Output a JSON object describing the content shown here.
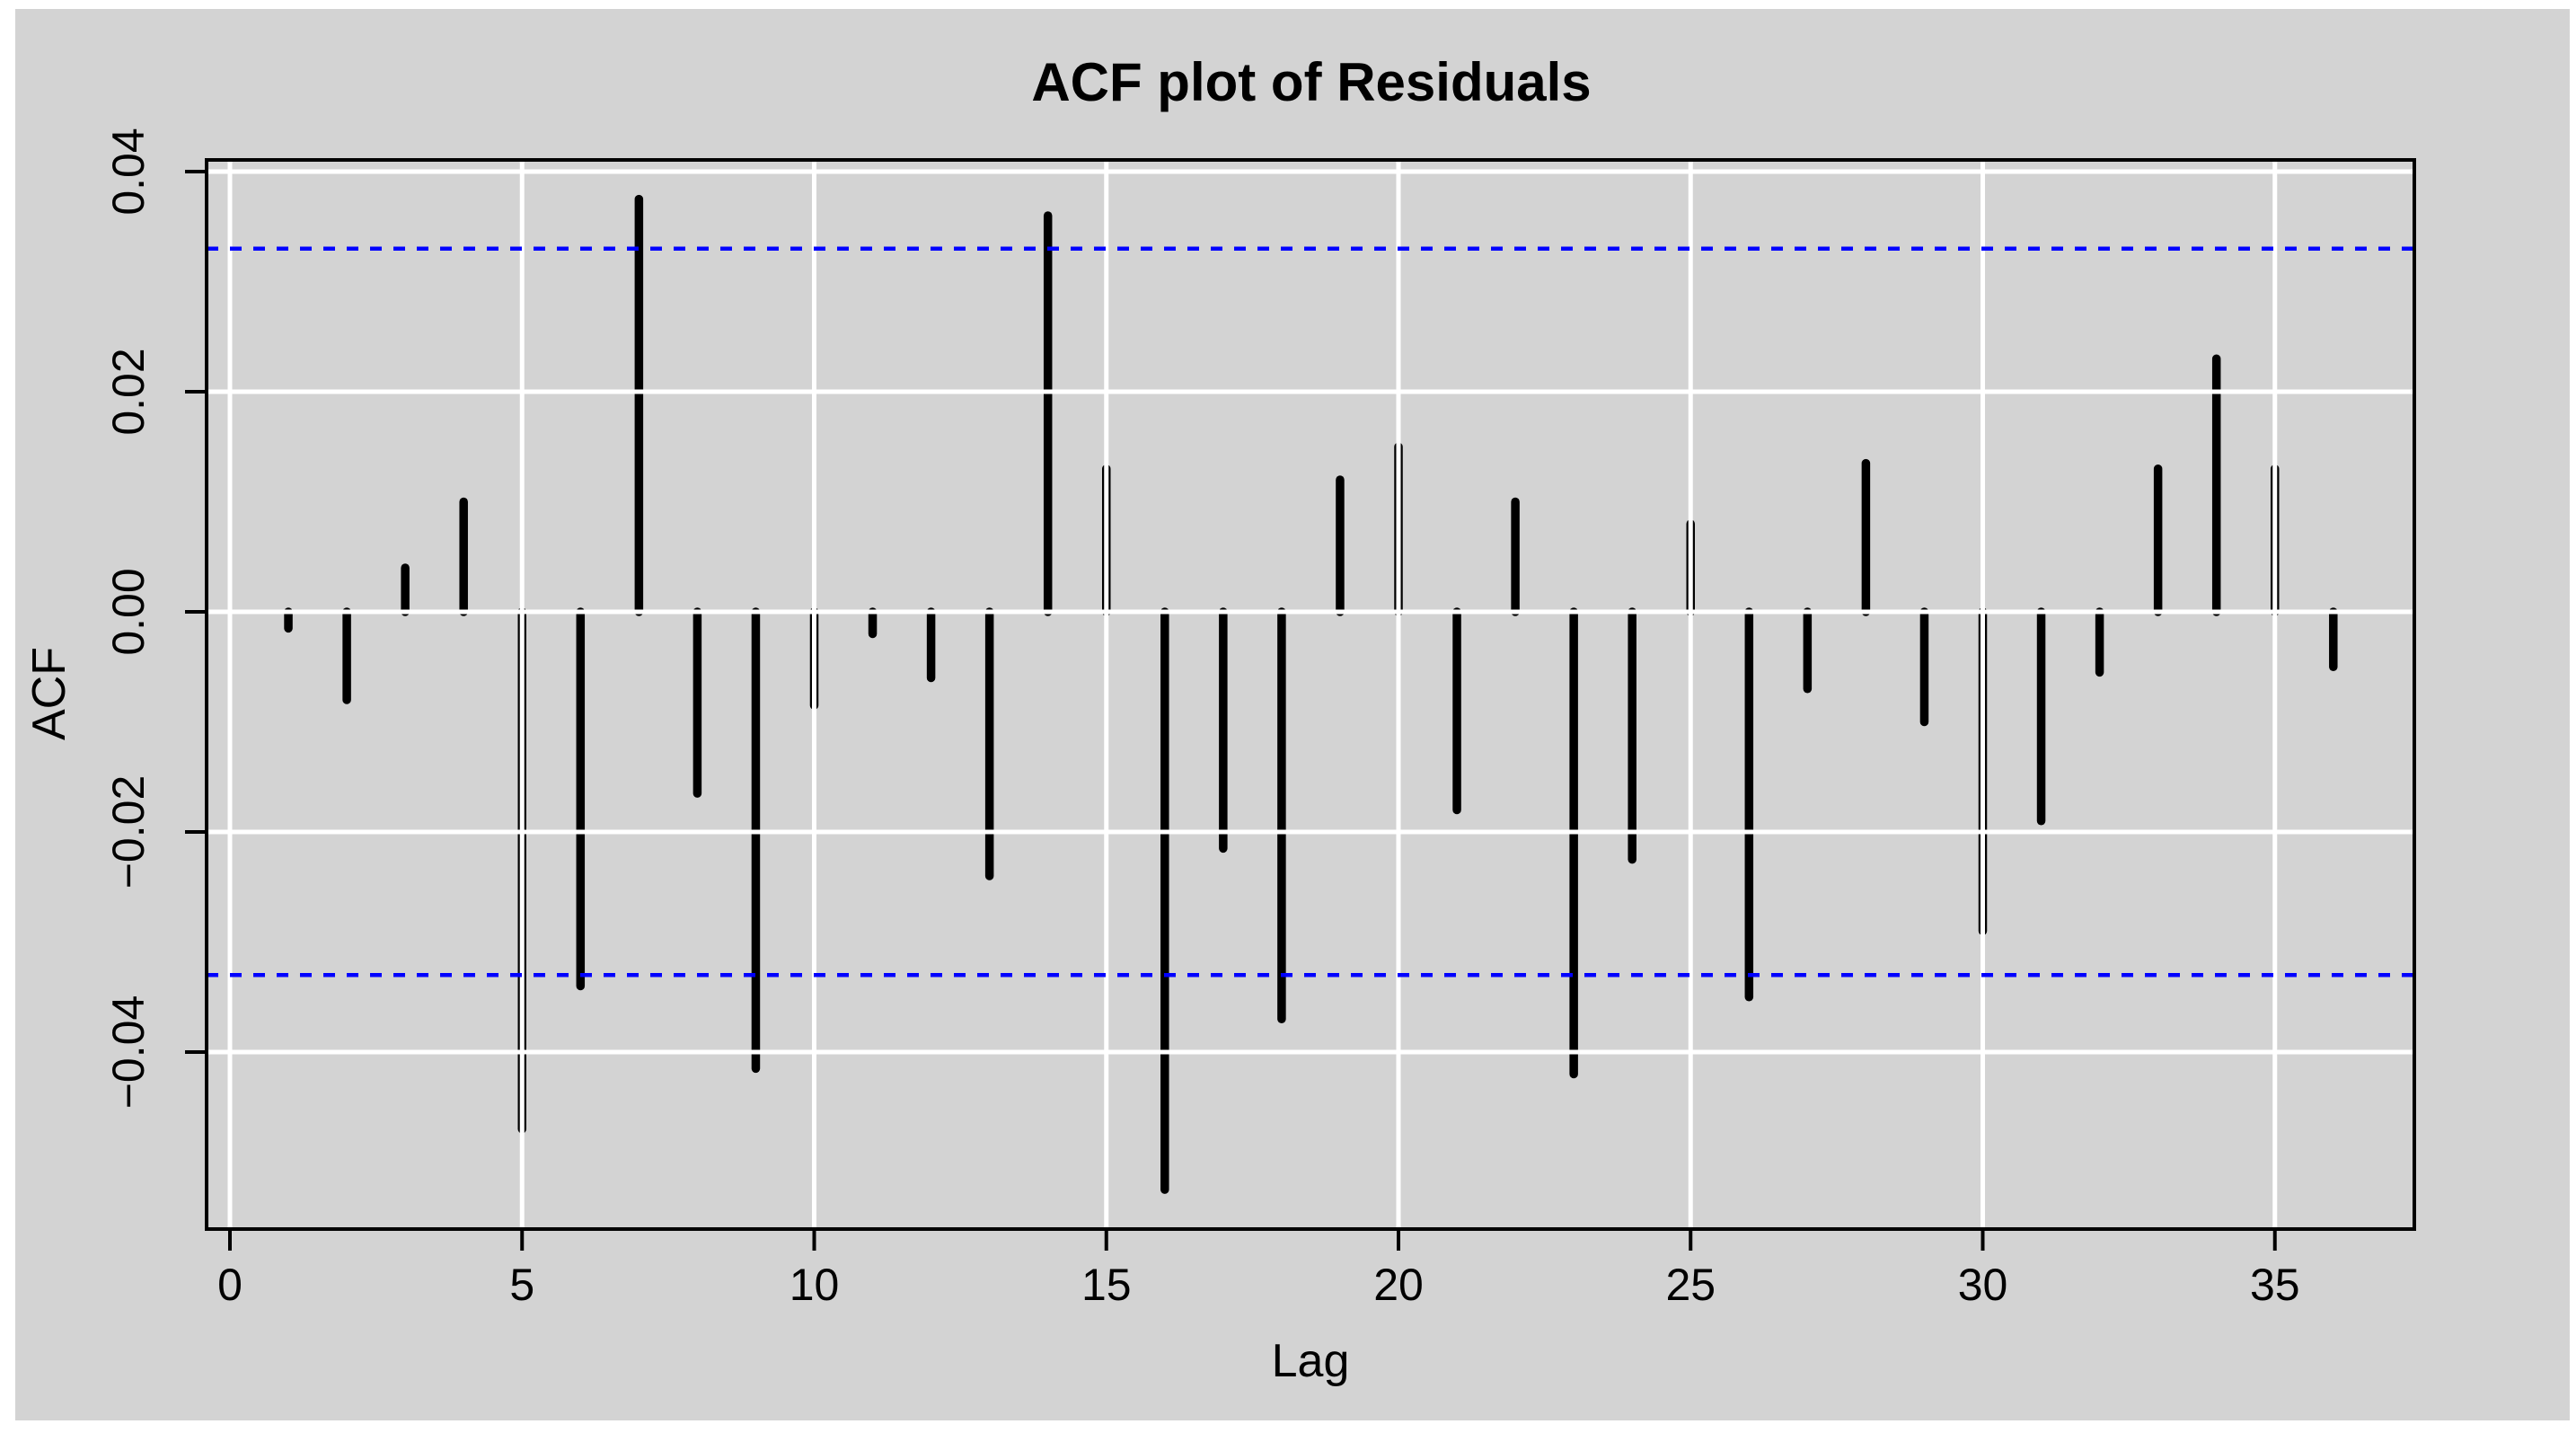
{
  "title": "ACF plot of Residuals",
  "x_axis": {
    "label": "Lag",
    "ticks": [
      0,
      5,
      10,
      15,
      20,
      25,
      30,
      35
    ]
  },
  "y_axis": {
    "label": "ACF",
    "ticks": [
      {
        "label": "0.04",
        "value": 0.04
      },
      {
        "label": "0.02",
        "value": 0.02
      },
      {
        "label": "0.00",
        "value": 0.0
      },
      {
        "label": "−0.02",
        "value": -0.02
      },
      {
        "label": "−0.04",
        "value": -0.04
      }
    ]
  },
  "chart_data": {
    "type": "bar",
    "title": "ACF plot of Residuals",
    "xlabel": "Lag",
    "ylabel": "ACF",
    "lags": [
      1,
      2,
      3,
      4,
      5,
      6,
      7,
      8,
      9,
      10,
      11,
      12,
      13,
      14,
      15,
      16,
      17,
      18,
      19,
      20,
      21,
      22,
      23,
      24,
      25,
      26,
      27,
      28,
      29,
      30,
      31,
      32,
      33,
      34,
      35,
      36
    ],
    "values": [
      -0.0015,
      -0.008,
      0.004,
      0.01,
      -0.047,
      -0.034,
      0.0375,
      -0.0165,
      -0.0415,
      -0.0085,
      -0.002,
      -0.006,
      -0.024,
      0.036,
      0.013,
      -0.0525,
      -0.0215,
      -0.037,
      0.012,
      0.015,
      -0.018,
      0.01,
      -0.042,
      -0.0225,
      0.008,
      -0.035,
      -0.007,
      0.0135,
      -0.01,
      -0.029,
      -0.019,
      -0.0055,
      0.013,
      0.023,
      0.013,
      -0.005
    ],
    "confidence_bounds": {
      "upper": 0.033,
      "lower": -0.033
    },
    "xlim": [
      -0.4,
      37.4
    ],
    "ylim": [
      -0.056,
      0.041
    ],
    "grid": true,
    "legend": "none"
  },
  "colors": {
    "background": "#d3d3d3",
    "frame": "#ffffff",
    "grid": "#ffffff",
    "bar": "#000000",
    "box": "#000000",
    "ci_line": "#0000ff",
    "text": "#000000"
  }
}
